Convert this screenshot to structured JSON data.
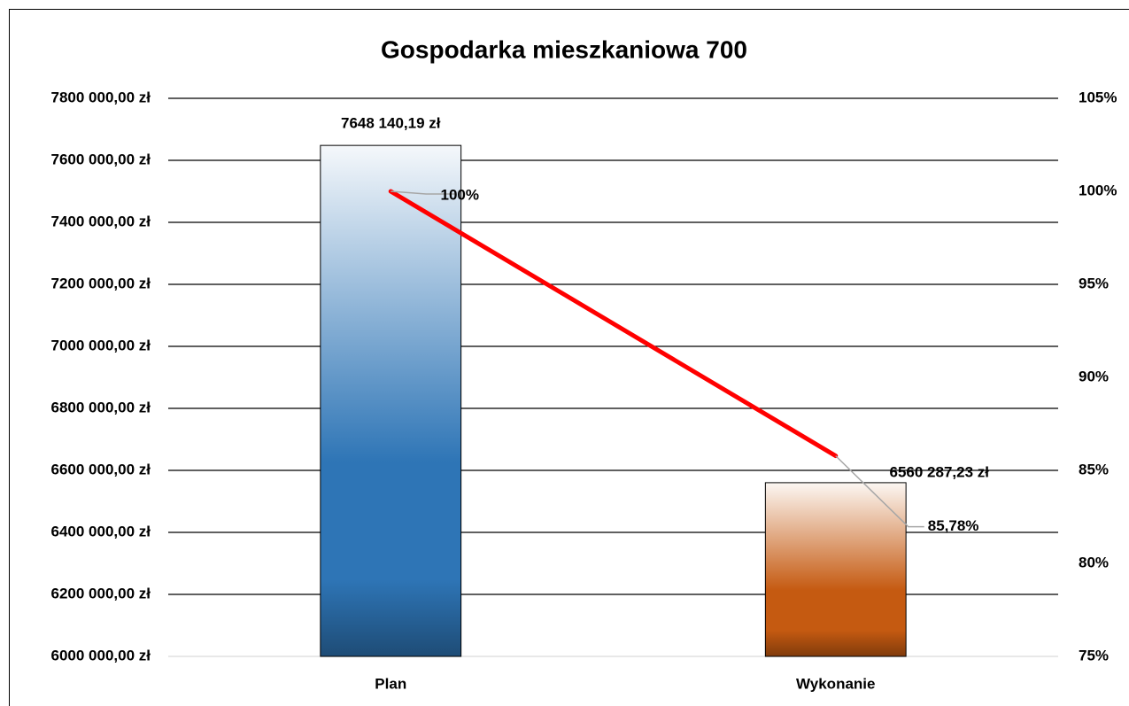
{
  "chart_data": {
    "type": "combo",
    "title": "Gospodarka mieszkaniowa 700",
    "categories": [
      "Plan",
      "Wykonanie"
    ],
    "series": [
      {
        "type": "bar",
        "colors": [
          "#2e75b6",
          "#c55a11"
        ],
        "values": [
          7648140.19,
          6560287.23
        ],
        "value_labels": [
          "7648 140,19 zł",
          "6560 287,23 zł"
        ]
      },
      {
        "type": "line",
        "axis": "y2",
        "color": "#ff0000",
        "values": [
          100,
          85.78
        ],
        "value_labels": [
          "100%",
          "85,78%"
        ]
      }
    ],
    "ylim": [
      6000000,
      7800000
    ],
    "yticks": [
      {
        "value": 6000000,
        "label": "6000 000,00 zł"
      },
      {
        "value": 6200000,
        "label": "6200 000,00 zł"
      },
      {
        "value": 6400000,
        "label": "6400 000,00 zł"
      },
      {
        "value": 6600000,
        "label": "6600 000,00 zł"
      },
      {
        "value": 6800000,
        "label": "6800 000,00 zł"
      },
      {
        "value": 7000000,
        "label": "7000 000,00 zł"
      },
      {
        "value": 7200000,
        "label": "7200 000,00 zł"
      },
      {
        "value": 7400000,
        "label": "7400 000,00 zł"
      },
      {
        "value": 7600000,
        "label": "7600 000,00 zł"
      },
      {
        "value": 7800000,
        "label": "7800 000,00 zł"
      }
    ],
    "y2lim": [
      75,
      105
    ],
    "y2ticks": [
      {
        "value": 75,
        "label": "75%"
      },
      {
        "value": 80,
        "label": "80%"
      },
      {
        "value": 85,
        "label": "85%"
      },
      {
        "value": 90,
        "label": "90%"
      },
      {
        "value": 95,
        "label": "95%"
      },
      {
        "value": 100,
        "label": "100%"
      },
      {
        "value": 105,
        "label": "105%"
      }
    ],
    "grid": true
  }
}
